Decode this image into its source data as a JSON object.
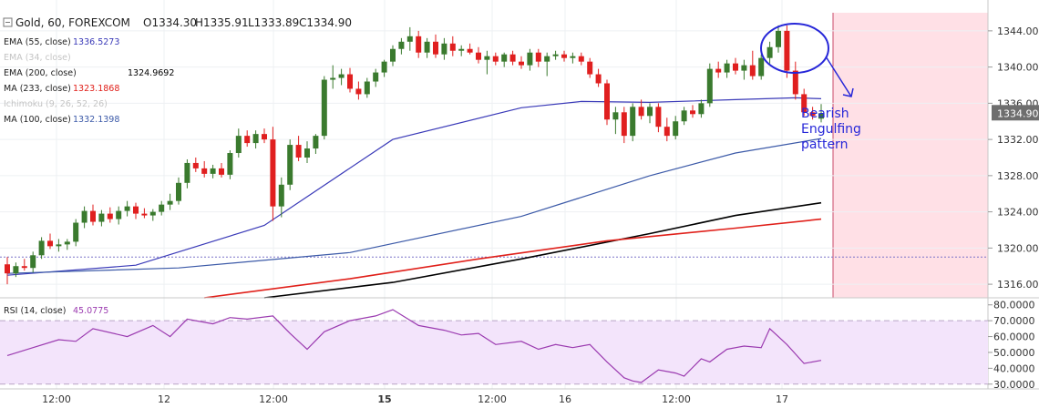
{
  "header": {
    "symbol": "Gold, 60, FOREXCOM",
    "ohlc": {
      "open": "O1334.30",
      "high": "H1335.91",
      "low": "L1333.89",
      "close": "C1334.90"
    }
  },
  "legend": [
    {
      "name": "EMA (55, close)",
      "value": "1336.5273",
      "color": "#3a3ab8",
      "dim": false
    },
    {
      "name": "EMA (34, close)",
      "value": "",
      "color": "#bbbbbb",
      "dim": true
    },
    {
      "name": "EMA (200, close)",
      "value": "1324.9692",
      "color": "#000000",
      "dim": false
    },
    {
      "name": "MA (233, close)",
      "value": "1323.1868",
      "color": "#e0201a",
      "dim": false
    },
    {
      "name": "Ichimoku (9, 26, 52, 26)",
      "value": "",
      "color": "#bbbbbb",
      "dim": true
    },
    {
      "name": "MA (100, close)",
      "value": "1332.1398",
      "color": "#3c5aa8",
      "dim": false
    }
  ],
  "price_axis": {
    "ticks": [
      "1344.00",
      "1340.00",
      "1336.00",
      "1332.00",
      "1328.00",
      "1324.00",
      "1320.00",
      "1316.00"
    ],
    "current_price": "1334.90",
    "current_price_color": "#6e6e6e"
  },
  "rsi": {
    "label": "RSI (14, close)",
    "value": "45.0775",
    "line_color": "#9b3bb0",
    "band_fill": "#f3e4fb",
    "ticks": [
      "80.0000",
      "70.0000",
      "60.0000",
      "50.0000",
      "40.0000",
      "30.0000"
    ]
  },
  "time_axis": {
    "labels": [
      {
        "text": "12:00",
        "bold": false
      },
      {
        "text": "12",
        "bold": false
      },
      {
        "text": "12:00",
        "bold": false
      },
      {
        "text": "15",
        "bold": true
      },
      {
        "text": "12:00",
        "bold": false
      },
      {
        "text": "16",
        "bold": false
      },
      {
        "text": "12:00",
        "bold": false
      },
      {
        "text": "17",
        "bold": false
      }
    ]
  },
  "annotation": {
    "text_lines": [
      "Bearish",
      "Engulfing",
      "pattern"
    ],
    "color": "#2727d8"
  },
  "colors": {
    "up_candle": "#3a7a2e",
    "down_candle": "#e01f1f",
    "ema55": "#3a3ab8",
    "ma100": "#3c5aa8",
    "ema200": "#000000",
    "ma233": "#e0201a",
    "future_zone": "#ffe0e6",
    "future_line": "#c94a6a"
  },
  "chart_data": [
    {
      "type": "candlestick",
      "title": "Gold, 60, FOREXCOM",
      "x_unit": "hourly bars",
      "ylim": [
        1314.5,
        1346.0
      ],
      "x_labels": [
        "12:00",
        "12",
        "12:00",
        "15",
        "12:00",
        "16",
        "12:00",
        "17"
      ],
      "candles": [
        {
          "o": 1318.2,
          "h": 1319.0,
          "l": 1316.0,
          "c": 1317.2
        },
        {
          "o": 1317.2,
          "h": 1318.4,
          "l": 1316.8,
          "c": 1318.0
        },
        {
          "o": 1318.0,
          "h": 1318.8,
          "l": 1317.5,
          "c": 1317.8
        },
        {
          "o": 1317.8,
          "h": 1319.6,
          "l": 1317.3,
          "c": 1319.2
        },
        {
          "o": 1319.2,
          "h": 1321.2,
          "l": 1318.8,
          "c": 1320.8
        },
        {
          "o": 1320.8,
          "h": 1321.6,
          "l": 1319.9,
          "c": 1320.2
        },
        {
          "o": 1320.2,
          "h": 1321.0,
          "l": 1319.6,
          "c": 1320.4
        },
        {
          "o": 1320.4,
          "h": 1321.0,
          "l": 1319.8,
          "c": 1320.7
        },
        {
          "o": 1320.7,
          "h": 1323.2,
          "l": 1320.2,
          "c": 1322.8
        },
        {
          "o": 1322.8,
          "h": 1324.6,
          "l": 1322.2,
          "c": 1324.1
        },
        {
          "o": 1324.1,
          "h": 1324.8,
          "l": 1322.5,
          "c": 1322.9
        },
        {
          "o": 1322.9,
          "h": 1324.2,
          "l": 1322.4,
          "c": 1323.8
        },
        {
          "o": 1323.8,
          "h": 1324.5,
          "l": 1322.8,
          "c": 1323.2
        },
        {
          "o": 1323.2,
          "h": 1324.6,
          "l": 1322.6,
          "c": 1324.1
        },
        {
          "o": 1324.1,
          "h": 1325.2,
          "l": 1323.5,
          "c": 1324.6
        },
        {
          "o": 1324.6,
          "h": 1325.0,
          "l": 1323.2,
          "c": 1323.8
        },
        {
          "o": 1323.8,
          "h": 1324.4,
          "l": 1323.3,
          "c": 1323.6
        },
        {
          "o": 1323.6,
          "h": 1324.3,
          "l": 1323.0,
          "c": 1324.0
        },
        {
          "o": 1324.0,
          "h": 1325.2,
          "l": 1323.6,
          "c": 1324.8
        },
        {
          "o": 1324.8,
          "h": 1326.0,
          "l": 1324.2,
          "c": 1325.2
        },
        {
          "o": 1325.2,
          "h": 1327.8,
          "l": 1324.8,
          "c": 1327.2
        },
        {
          "o": 1327.2,
          "h": 1329.8,
          "l": 1326.6,
          "c": 1329.4
        },
        {
          "o": 1329.4,
          "h": 1330.0,
          "l": 1328.4,
          "c": 1328.8
        },
        {
          "o": 1328.8,
          "h": 1329.6,
          "l": 1327.8,
          "c": 1328.2
        },
        {
          "o": 1328.2,
          "h": 1329.2,
          "l": 1327.7,
          "c": 1328.8
        },
        {
          "o": 1328.8,
          "h": 1329.4,
          "l": 1327.8,
          "c": 1328.1
        },
        {
          "o": 1328.1,
          "h": 1330.8,
          "l": 1327.6,
          "c": 1330.5
        },
        {
          "o": 1330.5,
          "h": 1333.2,
          "l": 1330.0,
          "c": 1332.4
        },
        {
          "o": 1332.4,
          "h": 1333.0,
          "l": 1331.2,
          "c": 1331.6
        },
        {
          "o": 1331.6,
          "h": 1333.0,
          "l": 1331.0,
          "c": 1332.6
        },
        {
          "o": 1332.6,
          "h": 1333.2,
          "l": 1331.6,
          "c": 1332.0
        },
        {
          "o": 1332.0,
          "h": 1333.4,
          "l": 1323.0,
          "c": 1324.6
        },
        {
          "o": 1324.6,
          "h": 1327.8,
          "l": 1323.4,
          "c": 1327.0
        },
        {
          "o": 1327.0,
          "h": 1332.0,
          "l": 1326.4,
          "c": 1331.4
        },
        {
          "o": 1331.4,
          "h": 1332.4,
          "l": 1329.6,
          "c": 1330.0
        },
        {
          "o": 1330.0,
          "h": 1331.8,
          "l": 1329.4,
          "c": 1331.0
        },
        {
          "o": 1331.0,
          "h": 1332.6,
          "l": 1330.4,
          "c": 1332.4
        },
        {
          "o": 1332.4,
          "h": 1339.0,
          "l": 1332.0,
          "c": 1338.6
        },
        {
          "o": 1338.6,
          "h": 1340.2,
          "l": 1337.6,
          "c": 1338.8
        },
        {
          "o": 1338.8,
          "h": 1339.8,
          "l": 1338.0,
          "c": 1339.2
        },
        {
          "o": 1339.2,
          "h": 1339.9,
          "l": 1337.2,
          "c": 1337.6
        },
        {
          "o": 1337.6,
          "h": 1338.4,
          "l": 1336.4,
          "c": 1337.0
        },
        {
          "o": 1337.0,
          "h": 1338.8,
          "l": 1336.6,
          "c": 1338.4
        },
        {
          "o": 1338.4,
          "h": 1339.8,
          "l": 1337.8,
          "c": 1339.4
        },
        {
          "o": 1339.4,
          "h": 1340.8,
          "l": 1338.9,
          "c": 1340.6
        },
        {
          "o": 1340.6,
          "h": 1342.4,
          "l": 1340.1,
          "c": 1342.0
        },
        {
          "o": 1342.0,
          "h": 1343.2,
          "l": 1341.4,
          "c": 1342.8
        },
        {
          "o": 1342.8,
          "h": 1344.4,
          "l": 1341.8,
          "c": 1343.4
        },
        {
          "o": 1343.4,
          "h": 1344.0,
          "l": 1341.0,
          "c": 1341.6
        },
        {
          "o": 1341.6,
          "h": 1343.2,
          "l": 1341.0,
          "c": 1342.8
        },
        {
          "o": 1342.8,
          "h": 1343.6,
          "l": 1341.0,
          "c": 1341.4
        },
        {
          "o": 1341.4,
          "h": 1343.2,
          "l": 1340.8,
          "c": 1342.6
        },
        {
          "o": 1342.6,
          "h": 1343.4,
          "l": 1341.2,
          "c": 1341.8
        },
        {
          "o": 1341.8,
          "h": 1342.4,
          "l": 1341.2,
          "c": 1342.0
        },
        {
          "o": 1342.0,
          "h": 1342.6,
          "l": 1341.4,
          "c": 1341.6
        },
        {
          "o": 1341.6,
          "h": 1342.2,
          "l": 1340.4,
          "c": 1340.8
        },
        {
          "o": 1340.8,
          "h": 1341.8,
          "l": 1339.2,
          "c": 1341.2
        },
        {
          "o": 1341.2,
          "h": 1341.6,
          "l": 1340.2,
          "c": 1340.6
        },
        {
          "o": 1340.6,
          "h": 1341.6,
          "l": 1340.0,
          "c": 1341.4
        },
        {
          "o": 1341.4,
          "h": 1341.8,
          "l": 1340.2,
          "c": 1340.6
        },
        {
          "o": 1340.6,
          "h": 1341.2,
          "l": 1339.8,
          "c": 1340.2
        },
        {
          "o": 1340.2,
          "h": 1342.0,
          "l": 1339.6,
          "c": 1341.6
        },
        {
          "o": 1341.6,
          "h": 1342.0,
          "l": 1340.0,
          "c": 1340.6
        },
        {
          "o": 1340.6,
          "h": 1341.6,
          "l": 1339.0,
          "c": 1341.2
        },
        {
          "o": 1341.2,
          "h": 1341.8,
          "l": 1340.8,
          "c": 1341.4
        },
        {
          "o": 1341.4,
          "h": 1341.8,
          "l": 1340.6,
          "c": 1341.0
        },
        {
          "o": 1341.0,
          "h": 1341.6,
          "l": 1340.4,
          "c": 1341.2
        },
        {
          "o": 1341.2,
          "h": 1341.6,
          "l": 1340.2,
          "c": 1340.6
        },
        {
          "o": 1340.6,
          "h": 1341.0,
          "l": 1338.8,
          "c": 1339.2
        },
        {
          "o": 1339.2,
          "h": 1339.8,
          "l": 1337.8,
          "c": 1338.2
        },
        {
          "o": 1338.2,
          "h": 1338.6,
          "l": 1333.6,
          "c": 1334.2
        },
        {
          "o": 1334.2,
          "h": 1335.6,
          "l": 1332.6,
          "c": 1335.0
        },
        {
          "o": 1335.0,
          "h": 1335.6,
          "l": 1331.6,
          "c": 1332.4
        },
        {
          "o": 1332.4,
          "h": 1336.0,
          "l": 1331.8,
          "c": 1335.6
        },
        {
          "o": 1335.6,
          "h": 1336.4,
          "l": 1334.2,
          "c": 1334.6
        },
        {
          "o": 1334.6,
          "h": 1336.0,
          "l": 1333.8,
          "c": 1335.6
        },
        {
          "o": 1335.6,
          "h": 1336.0,
          "l": 1332.8,
          "c": 1333.4
        },
        {
          "o": 1333.4,
          "h": 1334.4,
          "l": 1331.8,
          "c": 1332.4
        },
        {
          "o": 1332.4,
          "h": 1334.6,
          "l": 1332.0,
          "c": 1334.0
        },
        {
          "o": 1334.0,
          "h": 1335.6,
          "l": 1333.6,
          "c": 1335.2
        },
        {
          "o": 1335.2,
          "h": 1335.8,
          "l": 1334.4,
          "c": 1334.8
        },
        {
          "o": 1334.8,
          "h": 1336.4,
          "l": 1334.4,
          "c": 1336.0
        },
        {
          "o": 1336.0,
          "h": 1340.4,
          "l": 1335.6,
          "c": 1339.8
        },
        {
          "o": 1339.8,
          "h": 1340.6,
          "l": 1338.8,
          "c": 1339.4
        },
        {
          "o": 1339.4,
          "h": 1340.8,
          "l": 1338.8,
          "c": 1340.4
        },
        {
          "o": 1340.4,
          "h": 1341.0,
          "l": 1339.2,
          "c": 1339.6
        },
        {
          "o": 1339.6,
          "h": 1340.8,
          "l": 1338.6,
          "c": 1340.2
        },
        {
          "o": 1340.2,
          "h": 1341.8,
          "l": 1338.6,
          "c": 1339.0
        },
        {
          "o": 1339.0,
          "h": 1341.4,
          "l": 1338.6,
          "c": 1341.0
        },
        {
          "o": 1341.0,
          "h": 1342.8,
          "l": 1340.4,
          "c": 1342.2
        },
        {
          "o": 1342.2,
          "h": 1344.6,
          "l": 1341.6,
          "c": 1344.0
        },
        {
          "o": 1344.0,
          "h": 1344.6,
          "l": 1338.8,
          "c": 1339.6
        },
        {
          "o": 1339.6,
          "h": 1340.6,
          "l": 1336.4,
          "c": 1337.0
        },
        {
          "o": 1337.0,
          "h": 1337.6,
          "l": 1334.6,
          "c": 1335.0
        },
        {
          "o": 1335.0,
          "h": 1335.6,
          "l": 1334.2,
          "c": 1334.6
        },
        {
          "o": 1334.3,
          "h": 1335.91,
          "l": 1333.89,
          "c": 1334.9
        }
      ],
      "overlays": [
        {
          "name": "EMA (55, close)",
          "x": [
            0,
            15,
            30,
            45,
            60,
            67,
            75,
            85,
            92,
            95
          ],
          "y": [
            1317.0,
            1318.1,
            1322.5,
            1332.0,
            1335.5,
            1336.2,
            1336.1,
            1336.4,
            1336.6,
            1336.5
          ]
        },
        {
          "name": "MA (100, close)",
          "x": [
            0,
            20,
            40,
            60,
            75,
            85,
            95
          ],
          "y": [
            1317.2,
            1317.8,
            1319.5,
            1323.5,
            1328.0,
            1330.5,
            1332.1
          ]
        },
        {
          "name": "EMA (200, close)",
          "x": [
            30,
            45,
            60,
            75,
            85,
            95
          ],
          "y": [
            1314.5,
            1316.2,
            1318.8,
            1321.6,
            1323.6,
            1325.0
          ]
        },
        {
          "name": "MA (233, close)",
          "x": [
            23,
            40,
            55,
            70,
            85,
            95
          ],
          "y": [
            1314.5,
            1316.6,
            1318.8,
            1320.8,
            1322.2,
            1323.2
          ]
        }
      ],
      "hline": 1319.0
    },
    {
      "type": "line",
      "title": "RSI (14, close)",
      "ylim": [
        27,
        81
      ],
      "band": [
        30,
        70
      ],
      "x": [
        0,
        3,
        6,
        8,
        10,
        14,
        17,
        19,
        21,
        24,
        26,
        28,
        31,
        33,
        35,
        37,
        40,
        43,
        45,
        48,
        51,
        53,
        55,
        57,
        60,
        62,
        64,
        66,
        68,
        70,
        72,
        73,
        74,
        76,
        78,
        79,
        81,
        82,
        84,
        86,
        88,
        89,
        90,
        91,
        93,
        95
      ],
      "y": [
        48,
        53,
        58,
        57,
        65,
        60,
        67,
        60,
        71,
        68,
        72,
        71,
        73,
        62,
        52,
        63,
        70,
        73,
        77,
        67,
        64,
        61,
        62,
        55,
        57,
        52,
        55,
        53,
        55,
        44,
        34,
        32,
        31,
        39,
        37,
        35,
        46,
        44,
        52,
        54,
        53,
        65,
        60,
        55,
        43,
        45
      ]
    }
  ]
}
